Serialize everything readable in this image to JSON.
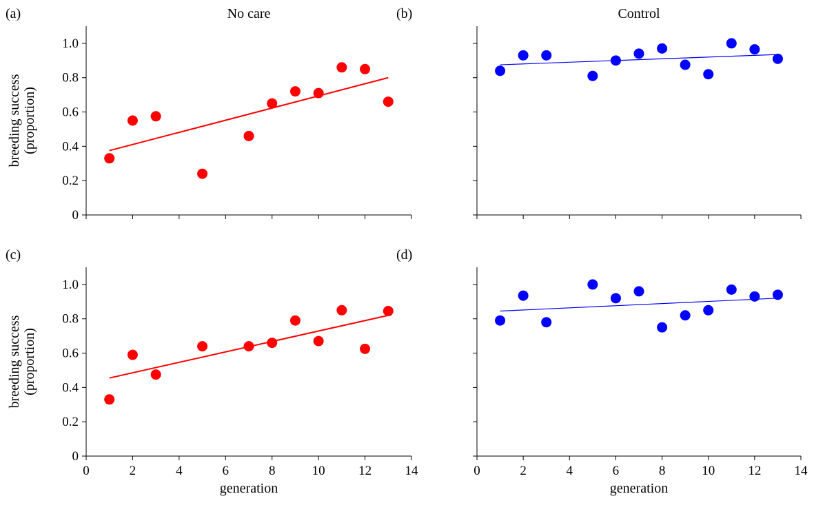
{
  "figure": {
    "column_titles": [
      "No care",
      "Control"
    ]
  },
  "chart_data": [
    {
      "type": "scatter",
      "panel": "a",
      "tag": "(a)",
      "title": "No care",
      "xlabel": "",
      "ylabel": [
        "breeding success",
        "(proportion)"
      ],
      "xlim": [
        0,
        14
      ],
      "ylim": [
        0,
        1.1
      ],
      "xticks": [
        0,
        2,
        4,
        6,
        8,
        10,
        12,
        14
      ],
      "xtick_labels_visible": false,
      "yticks": [
        0,
        0.2,
        0.4,
        0.6,
        0.8,
        1.0
      ],
      "ytick_labels": [
        "0",
        "0.2",
        "0.4",
        "0.6",
        "0.8",
        "1.0"
      ],
      "ytick_labels_visible": true,
      "color": "#ff0000",
      "line_width": 2,
      "x": [
        1,
        2,
        3,
        5,
        7,
        8,
        9,
        10,
        11,
        12,
        13
      ],
      "y": [
        0.33,
        0.55,
        0.575,
        0.24,
        0.46,
        0.65,
        0.72,
        0.71,
        0.86,
        0.85,
        0.66
      ],
      "trend": {
        "x": [
          1,
          13
        ],
        "y": [
          0.375,
          0.8
        ]
      }
    },
    {
      "type": "scatter",
      "panel": "b",
      "tag": "(b)",
      "title": "Control",
      "xlabel": "",
      "ylabel": [],
      "xlim": [
        0,
        14
      ],
      "ylim": [
        0,
        1.1
      ],
      "xticks": [
        0,
        2,
        4,
        6,
        8,
        10,
        12,
        14
      ],
      "xtick_labels_visible": false,
      "yticks": [
        0,
        0.2,
        0.4,
        0.6,
        0.8,
        1.0
      ],
      "ytick_labels_visible": false,
      "color": "#0000ff",
      "line_width": 1.2,
      "x": [
        1,
        2,
        3,
        5,
        6,
        7,
        8,
        9,
        10,
        11,
        12,
        13
      ],
      "y": [
        0.84,
        0.93,
        0.93,
        0.81,
        0.9,
        0.94,
        0.97,
        0.875,
        0.82,
        1.0,
        0.965,
        0.91
      ],
      "trend": {
        "x": [
          1,
          13
        ],
        "y": [
          0.875,
          0.935
        ]
      }
    },
    {
      "type": "scatter",
      "panel": "c",
      "tag": "(c)",
      "title": "",
      "xlabel": "generation",
      "ylabel": [
        "breeding success",
        "(proportion)"
      ],
      "xlim": [
        0,
        14
      ],
      "ylim": [
        0,
        1.1
      ],
      "xticks": [
        0,
        2,
        4,
        6,
        8,
        10,
        12,
        14
      ],
      "xtick_labels": [
        "0",
        "2",
        "4",
        "6",
        "8",
        "10",
        "12",
        "14"
      ],
      "xtick_labels_visible": true,
      "yticks": [
        0,
        0.2,
        0.4,
        0.6,
        0.8,
        1.0
      ],
      "ytick_labels": [
        "0",
        "0.2",
        "0.4",
        "0.6",
        "0.8",
        "1.0"
      ],
      "ytick_labels_visible": true,
      "color": "#ff0000",
      "line_width": 2,
      "x": [
        1,
        2,
        3,
        5,
        7,
        8,
        9,
        10,
        11,
        12,
        13
      ],
      "y": [
        0.33,
        0.59,
        0.475,
        0.64,
        0.64,
        0.66,
        0.79,
        0.67,
        0.85,
        0.625,
        0.845
      ],
      "trend": {
        "x": [
          1,
          13
        ],
        "y": [
          0.455,
          0.82
        ]
      }
    },
    {
      "type": "scatter",
      "panel": "d",
      "tag": "(d)",
      "title": "",
      "xlabel": "generation",
      "ylabel": [],
      "xlim": [
        0,
        14
      ],
      "ylim": [
        0,
        1.1
      ],
      "xticks": [
        0,
        2,
        4,
        6,
        8,
        10,
        12,
        14
      ],
      "xtick_labels": [
        "0",
        "2",
        "4",
        "6",
        "8",
        "10",
        "12",
        "14"
      ],
      "xtick_labels_visible": true,
      "yticks": [
        0,
        0.2,
        0.4,
        0.6,
        0.8,
        1.0
      ],
      "ytick_labels_visible": false,
      "color": "#0000ff",
      "line_width": 1.2,
      "x": [
        1,
        2,
        3,
        5,
        6,
        7,
        8,
        9,
        10,
        11,
        12,
        13
      ],
      "y": [
        0.79,
        0.935,
        0.78,
        1.0,
        0.92,
        0.96,
        0.75,
        0.82,
        0.85,
        0.97,
        0.93,
        0.94
      ],
      "trend": {
        "x": [
          1,
          13
        ],
        "y": [
          0.845,
          0.92
        ]
      }
    }
  ]
}
